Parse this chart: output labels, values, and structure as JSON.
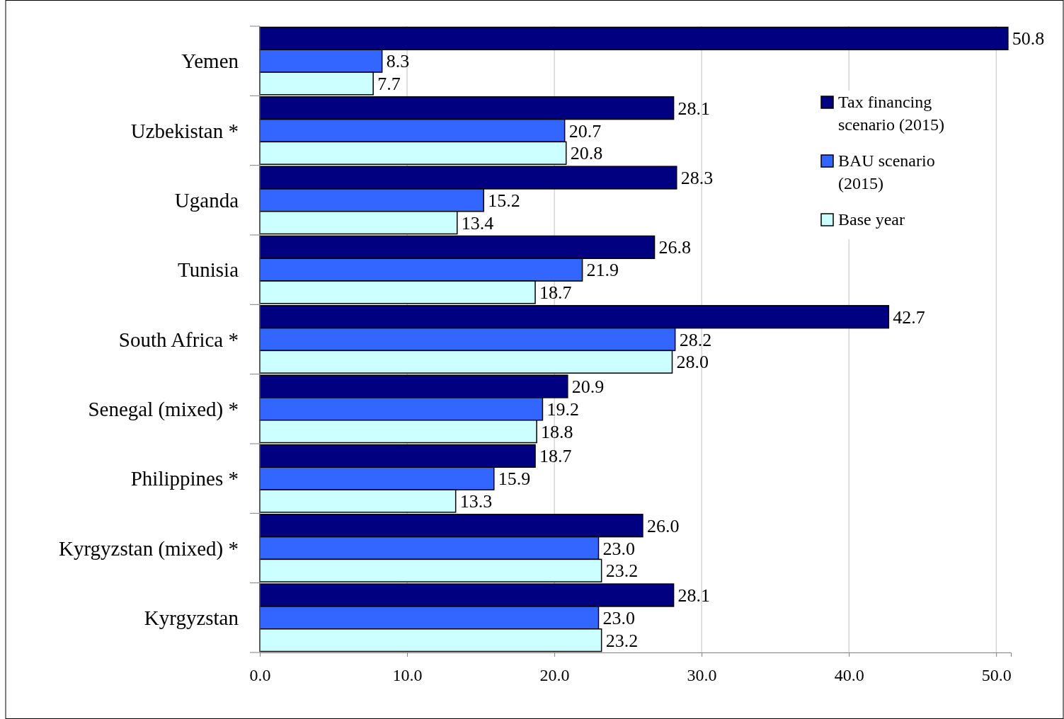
{
  "chart_data": {
    "type": "bar",
    "orientation": "horizontal",
    "categories": [
      "Yemen",
      "Uzbekistan *",
      "Uganda",
      "Tunisia",
      "South Africa *",
      "Senegal (mixed) *",
      "Philippines *",
      "Kyrgyzstan (mixed) *",
      "Kyrgyzstan"
    ],
    "series": [
      {
        "name": "Tax financing scenario (2015)",
        "color": "#000080",
        "values": [
          50.8,
          28.1,
          28.3,
          26.8,
          42.7,
          20.9,
          18.7,
          26.0,
          28.1
        ],
        "value_labels": [
          "50.8",
          "28.1",
          "28.3",
          "26.8",
          "42.7",
          "20.9",
          "18.7",
          "26.0",
          "28.1"
        ]
      },
      {
        "name": "BAU scenario (2015)",
        "color": "#3366ff",
        "values": [
          8.3,
          20.7,
          15.2,
          21.9,
          28.2,
          19.2,
          15.9,
          23.0,
          23.0
        ],
        "value_labels": [
          "8.3",
          "20.7",
          "15.2",
          "21.9",
          "28.2",
          "19.2",
          "15.9",
          "23.0",
          "23.0"
        ]
      },
      {
        "name": "Base year",
        "color": "#ccffff",
        "values": [
          7.7,
          20.8,
          13.4,
          18.7,
          28.0,
          18.8,
          13.3,
          23.2,
          23.2
        ],
        "value_labels": [
          "7.7",
          "20.8",
          "13.4",
          "18.7",
          "28.0",
          "18.8",
          "13.3",
          "23.2",
          "23.2"
        ]
      }
    ],
    "xlim": [
      0,
      51
    ],
    "xticks": [
      {
        "value": 0,
        "label": "0.0"
      },
      {
        "value": 10,
        "label": "10.0"
      },
      {
        "value": 20,
        "label": "20.0"
      },
      {
        "value": 30,
        "label": "30.0"
      },
      {
        "value": 40,
        "label": "40.0"
      },
      {
        "value": 50,
        "label": "50.0"
      }
    ],
    "grid": "x",
    "legend": "top right"
  }
}
